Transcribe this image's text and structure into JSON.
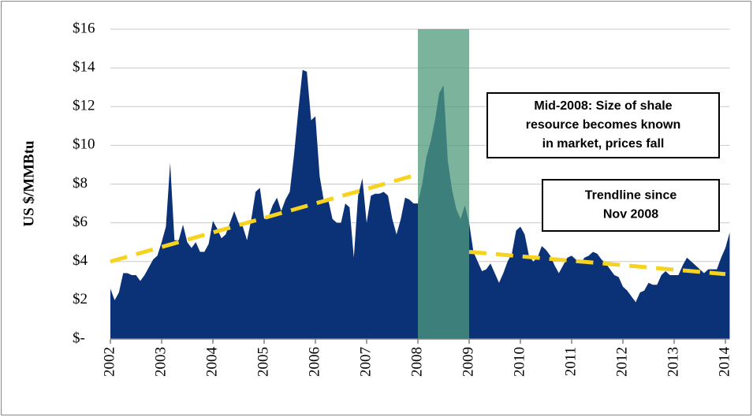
{
  "chart_data": {
    "type": "area",
    "y_label": "US $/MMBtu",
    "categories": [
      "2002",
      null,
      null,
      null,
      null,
      null,
      null,
      null,
      null,
      null,
      null,
      null,
      "2003",
      null,
      null,
      null,
      null,
      null,
      null,
      null,
      null,
      null,
      null,
      null,
      "2004",
      null,
      null,
      null,
      null,
      null,
      null,
      null,
      null,
      null,
      null,
      null,
      "2005",
      null,
      null,
      null,
      null,
      null,
      null,
      null,
      null,
      null,
      null,
      null,
      "2006",
      null,
      null,
      null,
      null,
      null,
      null,
      null,
      null,
      null,
      null,
      null,
      "2007",
      null,
      null,
      null,
      null,
      null,
      null,
      null,
      null,
      null,
      null,
      null,
      "2008",
      null,
      null,
      null,
      null,
      null,
      null,
      null,
      null,
      null,
      null,
      null,
      "2009",
      null,
      null,
      null,
      null,
      null,
      null,
      null,
      null,
      null,
      null,
      null,
      "2010",
      null,
      null,
      null,
      null,
      null,
      null,
      null,
      null,
      null,
      null,
      null,
      "2011",
      null,
      null,
      null,
      null,
      null,
      null,
      null,
      null,
      null,
      null,
      null,
      "2012",
      null,
      null,
      null,
      null,
      null,
      null,
      null,
      null,
      null,
      null,
      null,
      "2013",
      null,
      null,
      null,
      null,
      null,
      null,
      null,
      null,
      null,
      null,
      null,
      "2014",
      null
    ],
    "series": [
      {
        "color": "#0b3277",
        "values": [
          2.6,
          2.0,
          2.4,
          3.4,
          3.4,
          3.3,
          3.3,
          3.0,
          3.3,
          3.7,
          4.1,
          4.3,
          5.0,
          5.8,
          9.1,
          5.1,
          5.1,
          5.9,
          5.0,
          4.7,
          5.0,
          4.5,
          4.5,
          4.9,
          6.1,
          5.7,
          5.2,
          5.4,
          6.0,
          6.6,
          6.0,
          5.8,
          5.1,
          6.2,
          7.6,
          7.8,
          6.2,
          6.3,
          6.9,
          7.3,
          6.6,
          7.2,
          7.6,
          9.5,
          11.8,
          13.9,
          13.8,
          11.3,
          11.5,
          8.4,
          7.1,
          7.2,
          6.2,
          6.0,
          6.0,
          7.0,
          6.8,
          4.2,
          7.4,
          8.3,
          6.0,
          7.4,
          7.5,
          7.5,
          7.6,
          7.4,
          6.2,
          5.4,
          6.2,
          7.3,
          7.2,
          7.0,
          7.0,
          8.0,
          9.4,
          10.2,
          11.3,
          12.7,
          13.1,
          9.2,
          7.7,
          6.7,
          6.2,
          6.9,
          6.0,
          4.5,
          4.0,
          3.5,
          3.6,
          3.9,
          3.4,
          2.9,
          3.4,
          4.0,
          4.4,
          5.6,
          5.8,
          5.4,
          4.3,
          4.0,
          4.2,
          4.8,
          4.6,
          4.3,
          3.8,
          3.4,
          3.8,
          4.2,
          4.3,
          4.1,
          3.9,
          4.2,
          4.3,
          4.5,
          4.4,
          4.1,
          3.9,
          3.6,
          3.3,
          3.2,
          2.7,
          2.5,
          2.2,
          1.9,
          2.4,
          2.5,
          2.9,
          2.8,
          2.8,
          3.3,
          3.5,
          3.3,
          3.3,
          3.3,
          3.8,
          4.2,
          4.0,
          3.8,
          3.6,
          3.4,
          3.6,
          3.6,
          3.6,
          4.2,
          4.7,
          5.5
        ]
      }
    ],
    "ylim": [
      0,
      16
    ],
    "yticks": [
      {
        "value": 0,
        "label": "$-"
      },
      {
        "value": 2,
        "label": "$2"
      },
      {
        "value": 4,
        "label": "$4"
      },
      {
        "value": 6,
        "label": "$6"
      },
      {
        "value": 8,
        "label": "$8"
      },
      {
        "value": 10,
        "label": "$10"
      },
      {
        "value": 12,
        "label": "$12"
      },
      {
        "value": 14,
        "label": "$14"
      },
      {
        "value": 16,
        "label": "$16"
      }
    ],
    "grid": true,
    "shaded_span": {
      "from": "2008",
      "to": "2009",
      "color": "#4f9a7c"
    },
    "trendlines": [
      {
        "from": "2002",
        "to": "2008",
        "values": [
          4.0,
          8.5
        ],
        "color": "#f5d320"
      },
      {
        "from": "2009",
        "to": "2014",
        "values": [
          4.5,
          3.35
        ],
        "color": "#f5d320"
      }
    ],
    "annotations": [
      {
        "lines": [
          "Mid-2008: Size of shale",
          "resource becomes known",
          "in market, prices fall"
        ]
      },
      {
        "lines": [
          "Trendline since",
          "Nov 2008"
        ]
      }
    ]
  }
}
